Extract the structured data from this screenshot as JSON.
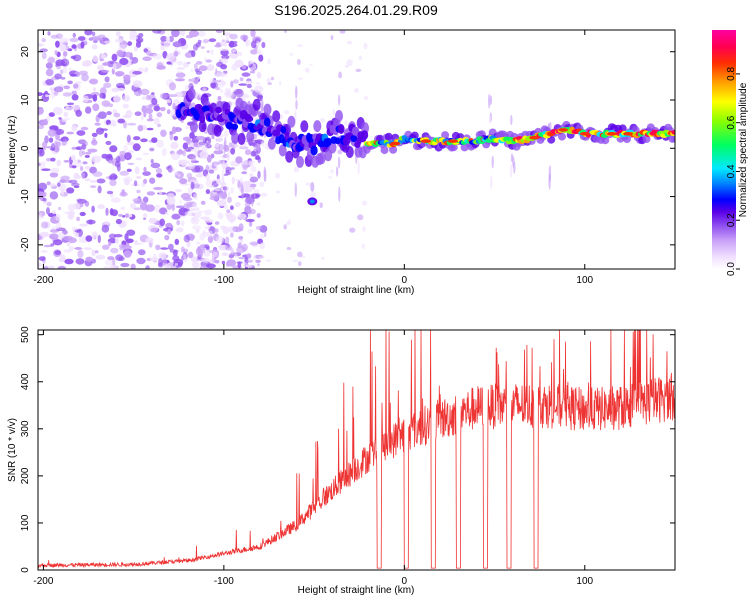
{
  "title": "S196.2025.264.01.29.R09",
  "chart_data": [
    {
      "type": "heatmap",
      "name": "spectrogram",
      "xlabel": "Height of straight line (km)",
      "ylabel": "Frequency (Hz)",
      "xlim": [
        -203,
        150
      ],
      "ylim": [
        -25,
        24.5
      ],
      "xticks": [
        -200,
        -100,
        0,
        100
      ],
      "yticks": [
        -20,
        -10,
        0,
        10,
        20
      ],
      "colorbar": {
        "label": "Normalized spectral amplitude",
        "range": [
          0,
          0.98
        ],
        "ticks": [
          0.0,
          0.2,
          0.4,
          0.6,
          0.8
        ],
        "colors": [
          "#ffffff",
          "#f0e0ff",
          "#c8a0f8",
          "#9050f0",
          "#5a00e8",
          "#0000ff",
          "#0088ff",
          "#00e8ff",
          "#00ff60",
          "#8cff00",
          "#ffff00",
          "#ffa000",
          "#ff3000",
          "#ff0050",
          "#ff00a0"
        ]
      },
      "ridge": [
        {
          "x": -125,
          "y": 8
        },
        {
          "x": -110,
          "y": 7
        },
        {
          "x": -95,
          "y": 6
        },
        {
          "x": -80,
          "y": 5
        },
        {
          "x": -70,
          "y": 3
        },
        {
          "x": -60,
          "y": 1
        },
        {
          "x": -50,
          "y": 1
        },
        {
          "x": -40,
          "y": 3
        },
        {
          "x": -30,
          "y": 3
        },
        {
          "x": -20,
          "y": 1
        },
        {
          "x": -5,
          "y": 1
        },
        {
          "x": 0,
          "y": 2
        },
        {
          "x": 10,
          "y": 1.5
        },
        {
          "x": 20,
          "y": 1.5
        },
        {
          "x": 30,
          "y": 1.5
        },
        {
          "x": 40,
          "y": 1.5
        },
        {
          "x": 50,
          "y": 2
        },
        {
          "x": 60,
          "y": 1.5
        },
        {
          "x": 70,
          "y": 2
        },
        {
          "x": 80,
          "y": 3
        },
        {
          "x": 90,
          "y": 4
        },
        {
          "x": 100,
          "y": 3
        },
        {
          "x": 110,
          "y": 3
        },
        {
          "x": 120,
          "y": 3
        },
        {
          "x": 130,
          "y": 3
        },
        {
          "x": 140,
          "y": 3
        },
        {
          "x": 150,
          "y": 3
        }
      ],
      "isolated_feature": {
        "x": -51,
        "y": -11
      }
    },
    {
      "type": "line",
      "name": "snr",
      "xlabel": "Height of straight line (km)",
      "ylabel": "SNR (10 * v/v)",
      "xlim": [
        -203,
        150
      ],
      "ylim": [
        0,
        510
      ],
      "xticks": [
        -200,
        -100,
        0,
        100
      ],
      "yticks": [
        0,
        100,
        200,
        300,
        400,
        500
      ],
      "color": "#ee3333",
      "baseline": [
        {
          "x": -203,
          "y": 10
        },
        {
          "x": -150,
          "y": 12
        },
        {
          "x": -120,
          "y": 20
        },
        {
          "x": -100,
          "y": 35
        },
        {
          "x": -80,
          "y": 50
        },
        {
          "x": -60,
          "y": 95
        },
        {
          "x": -40,
          "y": 170
        },
        {
          "x": -20,
          "y": 240
        },
        {
          "x": 0,
          "y": 290
        },
        {
          "x": 20,
          "y": 320
        },
        {
          "x": 40,
          "y": 345
        },
        {
          "x": 60,
          "y": 350
        },
        {
          "x": 80,
          "y": 350
        },
        {
          "x": 100,
          "y": 340
        },
        {
          "x": 120,
          "y": 345
        },
        {
          "x": 150,
          "y": 370
        }
      ],
      "dropouts": [
        -14,
        1,
        16,
        30,
        45,
        58,
        73
      ]
    }
  ]
}
